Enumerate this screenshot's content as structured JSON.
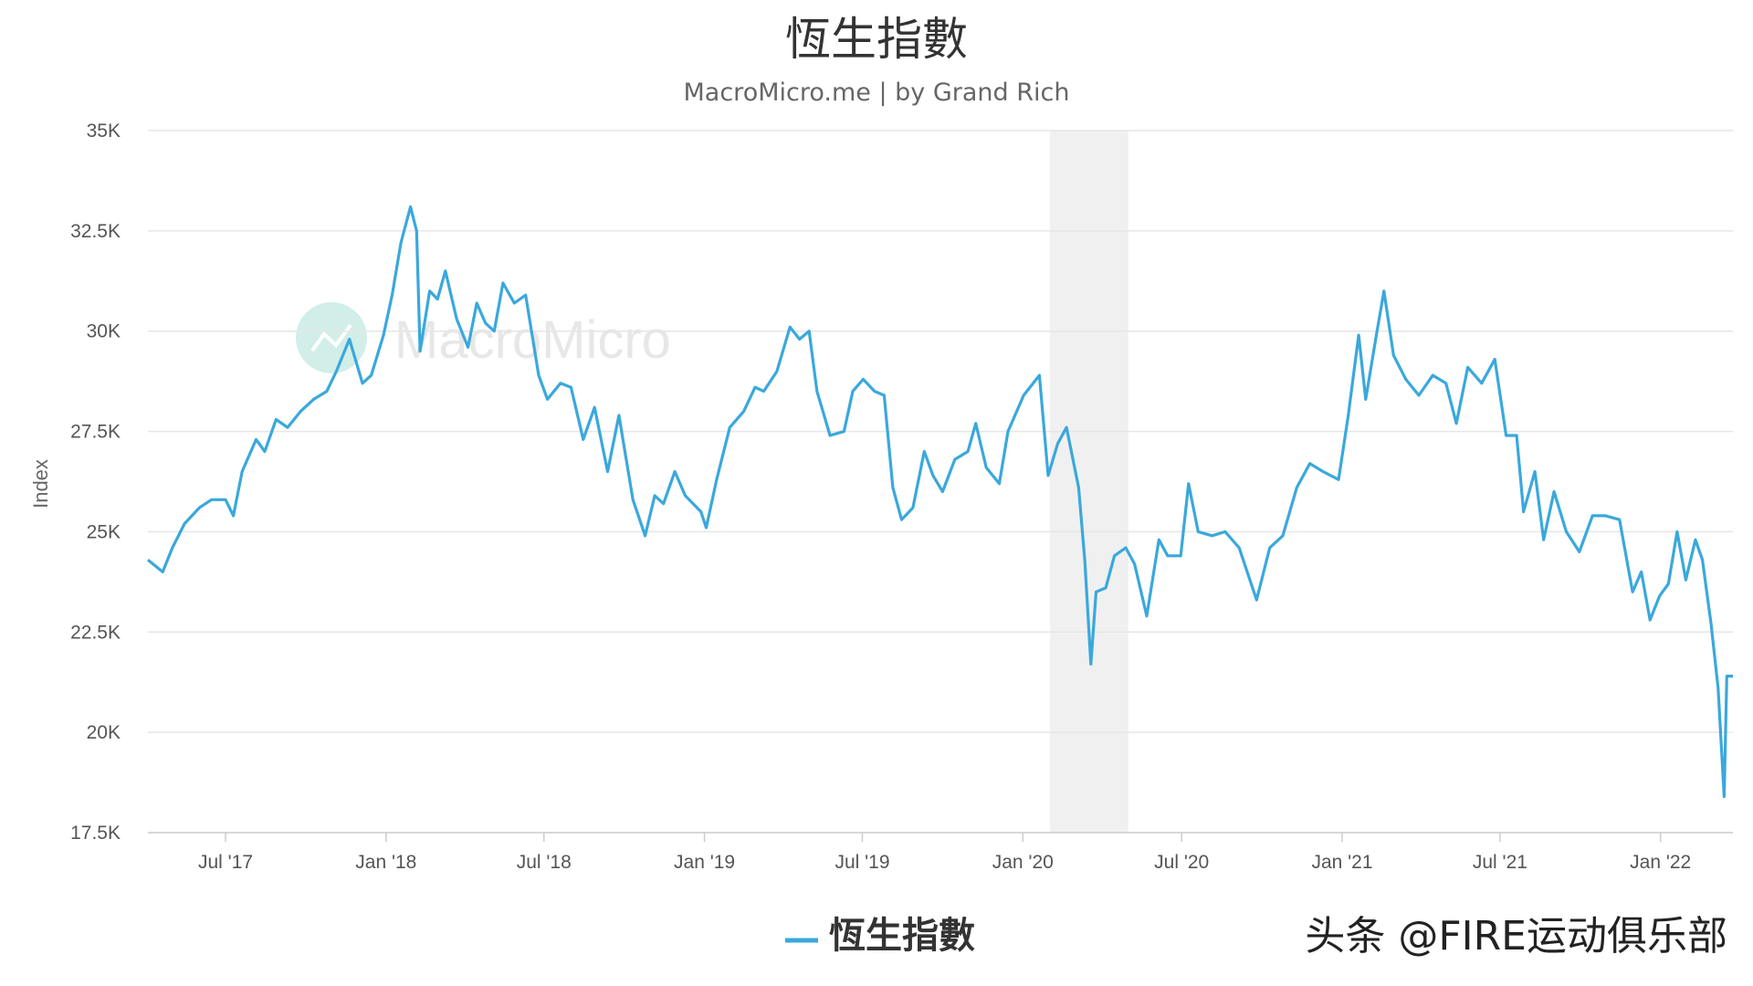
{
  "chart_data": {
    "type": "line",
    "title": "恆生指數",
    "subtitle": "MacroMicro.me | by Grand Rich",
    "ylabel": "Index",
    "xlabel": "",
    "ylim": [
      17500,
      35000
    ],
    "y_ticks": [
      17500,
      20000,
      22500,
      25000,
      27500,
      30000,
      32500,
      35000
    ],
    "y_tick_labels": [
      "17.5K",
      "20K",
      "22.5K",
      "25K",
      "27.5K",
      "30K",
      "32.5K",
      "35K"
    ],
    "x_range": [
      "2017-04-03",
      "2022-03-25"
    ],
    "x_ticks": [
      "2017-07-01",
      "2018-01-01",
      "2018-07-01",
      "2019-01-01",
      "2019-07-01",
      "2020-01-01",
      "2020-07-01",
      "2021-01-01",
      "2021-07-01",
      "2022-01-01"
    ],
    "x_tick_labels": [
      "Jul '17",
      "Jan '18",
      "Jul '18",
      "Jan '19",
      "Jul '19",
      "Jan '20",
      "Jul '20",
      "Jan '21",
      "Jul '21",
      "Jan '22"
    ],
    "grid": true,
    "legend": "bottom-center",
    "shaded_region": [
      "2020-02-01",
      "2020-05-01"
    ],
    "series": [
      {
        "name": "恆生指數",
        "color": "#3aa8dc",
        "points": [
          [
            "2017-04-03",
            24300
          ],
          [
            "2017-04-20",
            24000
          ],
          [
            "2017-05-01",
            24600
          ],
          [
            "2017-05-15",
            25200
          ],
          [
            "2017-06-01",
            25600
          ],
          [
            "2017-06-15",
            25800
          ],
          [
            "2017-07-01",
            25800
          ],
          [
            "2017-07-10",
            25400
          ],
          [
            "2017-07-20",
            26500
          ],
          [
            "2017-08-05",
            27300
          ],
          [
            "2017-08-15",
            27000
          ],
          [
            "2017-08-28",
            27800
          ],
          [
            "2017-09-10",
            27600
          ],
          [
            "2017-09-25",
            28000
          ],
          [
            "2017-10-10",
            28300
          ],
          [
            "2017-10-25",
            28500
          ],
          [
            "2017-11-05",
            29000
          ],
          [
            "2017-11-20",
            29800
          ],
          [
            "2017-12-05",
            28700
          ],
          [
            "2017-12-15",
            28900
          ],
          [
            "2017-12-29",
            29900
          ],
          [
            "2018-01-08",
            30900
          ],
          [
            "2018-01-18",
            32200
          ],
          [
            "2018-01-29",
            33100
          ],
          [
            "2018-02-05",
            32500
          ],
          [
            "2018-02-09",
            29500
          ],
          [
            "2018-02-20",
            31000
          ],
          [
            "2018-03-01",
            30800
          ],
          [
            "2018-03-10",
            31500
          ],
          [
            "2018-03-23",
            30300
          ],
          [
            "2018-04-05",
            29600
          ],
          [
            "2018-04-15",
            30700
          ],
          [
            "2018-04-25",
            30200
          ],
          [
            "2018-05-05",
            30000
          ],
          [
            "2018-05-15",
            31200
          ],
          [
            "2018-05-28",
            30700
          ],
          [
            "2018-06-10",
            30900
          ],
          [
            "2018-06-25",
            28900
          ],
          [
            "2018-07-05",
            28300
          ],
          [
            "2018-07-20",
            28700
          ],
          [
            "2018-08-01",
            28600
          ],
          [
            "2018-08-15",
            27300
          ],
          [
            "2018-08-28",
            28100
          ],
          [
            "2018-09-12",
            26500
          ],
          [
            "2018-09-25",
            27900
          ],
          [
            "2018-10-11",
            25800
          ],
          [
            "2018-10-25",
            24900
          ],
          [
            "2018-11-05",
            25900
          ],
          [
            "2018-11-15",
            25700
          ],
          [
            "2018-11-28",
            26500
          ],
          [
            "2018-12-10",
            25900
          ],
          [
            "2018-12-28",
            25500
          ],
          [
            "2019-01-03",
            25100
          ],
          [
            "2019-01-15",
            26300
          ],
          [
            "2019-01-30",
            27600
          ],
          [
            "2019-02-15",
            28000
          ],
          [
            "2019-02-28",
            28600
          ],
          [
            "2019-03-10",
            28500
          ],
          [
            "2019-03-25",
            29000
          ],
          [
            "2019-04-09",
            30100
          ],
          [
            "2019-04-20",
            29800
          ],
          [
            "2019-05-01",
            30000
          ],
          [
            "2019-05-10",
            28500
          ],
          [
            "2019-05-25",
            27400
          ],
          [
            "2019-06-10",
            27500
          ],
          [
            "2019-06-20",
            28500
          ],
          [
            "2019-07-02",
            28800
          ],
          [
            "2019-07-15",
            28500
          ],
          [
            "2019-07-26",
            28400
          ],
          [
            "2019-08-05",
            26100
          ],
          [
            "2019-08-15",
            25300
          ],
          [
            "2019-08-28",
            25600
          ],
          [
            "2019-09-10",
            27000
          ],
          [
            "2019-09-20",
            26400
          ],
          [
            "2019-10-01",
            26000
          ],
          [
            "2019-10-15",
            26800
          ],
          [
            "2019-10-30",
            27000
          ],
          [
            "2019-11-08",
            27700
          ],
          [
            "2019-11-20",
            26600
          ],
          [
            "2019-12-05",
            26200
          ],
          [
            "2019-12-15",
            27500
          ],
          [
            "2020-01-02",
            28400
          ],
          [
            "2020-01-20",
            28900
          ],
          [
            "2020-01-30",
            26400
          ],
          [
            "2020-02-10",
            27200
          ],
          [
            "2020-02-20",
            27600
          ],
          [
            "2020-03-05",
            26100
          ],
          [
            "2020-03-12",
            24300
          ],
          [
            "2020-03-19",
            21700
          ],
          [
            "2020-03-25",
            23500
          ],
          [
            "2020-04-05",
            23600
          ],
          [
            "2020-04-15",
            24400
          ],
          [
            "2020-04-28",
            24600
          ],
          [
            "2020-05-08",
            24200
          ],
          [
            "2020-05-22",
            22900
          ],
          [
            "2020-06-05",
            24800
          ],
          [
            "2020-06-15",
            24400
          ],
          [
            "2020-06-30",
            24400
          ],
          [
            "2020-07-09",
            26200
          ],
          [
            "2020-07-20",
            25000
          ],
          [
            "2020-08-05",
            24900
          ],
          [
            "2020-08-20",
            25000
          ],
          [
            "2020-09-05",
            24600
          ],
          [
            "2020-09-25",
            23300
          ],
          [
            "2020-10-10",
            24600
          ],
          [
            "2020-10-25",
            24900
          ],
          [
            "2020-11-10",
            26100
          ],
          [
            "2020-11-25",
            26700
          ],
          [
            "2020-12-10",
            26500
          ],
          [
            "2020-12-28",
            26300
          ],
          [
            "2021-01-08",
            27900
          ],
          [
            "2021-01-20",
            29900
          ],
          [
            "2021-01-28",
            28300
          ],
          [
            "2021-02-10",
            30000
          ],
          [
            "2021-02-18",
            31000
          ],
          [
            "2021-03-01",
            29400
          ],
          [
            "2021-03-15",
            28800
          ],
          [
            "2021-03-30",
            28400
          ],
          [
            "2021-04-15",
            28900
          ],
          [
            "2021-04-30",
            28700
          ],
          [
            "2021-05-12",
            27700
          ],
          [
            "2021-05-25",
            29100
          ],
          [
            "2021-06-10",
            28700
          ],
          [
            "2021-06-25",
            29300
          ],
          [
            "2021-07-08",
            27400
          ],
          [
            "2021-07-20",
            27400
          ],
          [
            "2021-07-28",
            25500
          ],
          [
            "2021-08-10",
            26500
          ],
          [
            "2021-08-20",
            24800
          ],
          [
            "2021-09-01",
            26000
          ],
          [
            "2021-09-15",
            25000
          ],
          [
            "2021-09-30",
            24500
          ],
          [
            "2021-10-15",
            25400
          ],
          [
            "2021-10-30",
            25400
          ],
          [
            "2021-11-15",
            25300
          ],
          [
            "2021-11-30",
            23500
          ],
          [
            "2021-12-10",
            24000
          ],
          [
            "2021-12-20",
            22800
          ],
          [
            "2021-12-31",
            23400
          ],
          [
            "2022-01-10",
            23700
          ],
          [
            "2022-01-20",
            25000
          ],
          [
            "2022-01-30",
            23800
          ],
          [
            "2022-02-10",
            24800
          ],
          [
            "2022-02-18",
            24300
          ],
          [
            "2022-02-28",
            22700
          ],
          [
            "2022-03-08",
            21100
          ],
          [
            "2022-03-15",
            18400
          ],
          [
            "2022-03-18",
            21400
          ],
          [
            "2022-03-25",
            21400
          ]
        ]
      }
    ]
  },
  "watermark": "MacroMicro",
  "footer_credit": "头条 @FIRE运动俱乐部"
}
